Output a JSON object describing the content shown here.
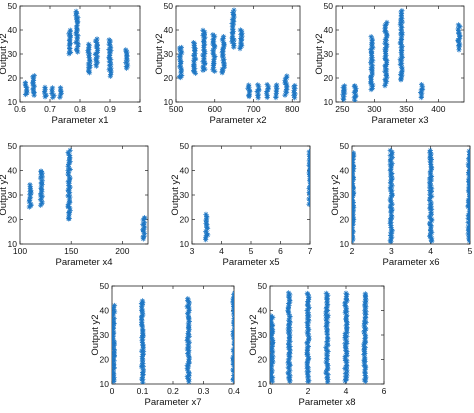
{
  "marker_color": "#1f77c4",
  "chart_data": [
    {
      "type": "scatter",
      "xlabel": "Parameter x1",
      "ylabel": "Output y2",
      "xlim": [
        0.6,
        1
      ],
      "ylim": [
        10,
        50
      ],
      "xticks": [
        "0.6",
        "0.7",
        "0.8",
        "0.9",
        "1"
      ],
      "yticks": [
        "10",
        "20",
        "30",
        "40",
        "50"
      ],
      "clusters": [
        {
          "x": 0.62,
          "y": [
            13,
            18
          ]
        },
        {
          "x": 0.645,
          "y": [
            13,
            21
          ]
        },
        {
          "x": 0.685,
          "y": [
            12,
            16
          ]
        },
        {
          "x": 0.71,
          "y": [
            12,
            16
          ]
        },
        {
          "x": 0.735,
          "y": [
            12,
            16
          ]
        },
        {
          "x": 0.765,
          "y": [
            30,
            40
          ]
        },
        {
          "x": 0.79,
          "y": [
            31,
            48
          ]
        },
        {
          "x": 0.83,
          "y": [
            22,
            34
          ]
        },
        {
          "x": 0.855,
          "y": [
            25,
            36
          ]
        },
        {
          "x": 0.9,
          "y": [
            21,
            36
          ]
        },
        {
          "x": 0.955,
          "y": [
            24,
            32
          ]
        }
      ]
    },
    {
      "type": "scatter",
      "xlabel": "Parameter x2",
      "ylabel": "Output y2",
      "xlim": [
        500,
        820
      ],
      "ylim": [
        10,
        50
      ],
      "xticks": [
        "500",
        "600",
        "700",
        "800"
      ],
      "yticks": [
        "10",
        "20",
        "30",
        "40",
        "50"
      ],
      "clusters": [
        {
          "x": 512,
          "y": [
            20,
            33
          ]
        },
        {
          "x": 548,
          "y": [
            22,
            35
          ]
        },
        {
          "x": 572,
          "y": [
            23,
            40
          ]
        },
        {
          "x": 598,
          "y": [
            23,
            38
          ]
        },
        {
          "x": 622,
          "y": [
            22,
            37
          ]
        },
        {
          "x": 647,
          "y": [
            33,
            48
          ]
        },
        {
          "x": 668,
          "y": [
            32,
            40
          ]
        },
        {
          "x": 688,
          "y": [
            12,
            17
          ]
        },
        {
          "x": 712,
          "y": [
            12,
            17
          ]
        },
        {
          "x": 736,
          "y": [
            12,
            17
          ]
        },
        {
          "x": 760,
          "y": [
            12,
            17
          ]
        },
        {
          "x": 784,
          "y": [
            13,
            21
          ]
        },
        {
          "x": 806,
          "y": [
            12,
            17
          ]
        }
      ]
    },
    {
      "type": "scatter",
      "xlabel": "Parameter x3",
      "ylabel": "Output y2",
      "xlim": [
        240,
        440
      ],
      "ylim": [
        10,
        50
      ],
      "xticks": [
        "250",
        "300",
        "350",
        "400"
      ],
      "yticks": [
        "10",
        "20",
        "30",
        "40",
        "50"
      ],
      "clusters": [
        {
          "x": 252,
          "y": [
            11,
            17
          ]
        },
        {
          "x": 270,
          "y": [
            11,
            17
          ]
        },
        {
          "x": 296,
          "y": [
            15,
            37
          ]
        },
        {
          "x": 318,
          "y": [
            17,
            43
          ]
        },
        {
          "x": 342,
          "y": [
            19,
            48
          ]
        },
        {
          "x": 374,
          "y": [
            12,
            17
          ]
        },
        {
          "x": 432,
          "y": [
            32,
            42
          ]
        }
      ]
    },
    {
      "type": "scatter",
      "xlabel": "Parameter x4",
      "ylabel": "Output y2",
      "xlim": [
        100,
        225
      ],
      "ylim": [
        10,
        50
      ],
      "xticks": [
        "100",
        "150",
        "200"
      ],
      "yticks": [
        "10",
        "20",
        "30",
        "40",
        "50"
      ],
      "clusters": [
        {
          "x": 110,
          "y": [
            25,
            34
          ]
        },
        {
          "x": 121,
          "y": [
            26,
            40
          ]
        },
        {
          "x": 148,
          "y": [
            20,
            48
          ]
        },
        {
          "x": 221,
          "y": [
            12,
            21
          ]
        }
      ]
    },
    {
      "type": "scatter",
      "xlabel": "Parameter x5",
      "ylabel": "Output y2",
      "xlim": [
        3,
        7
      ],
      "ylim": [
        10,
        50
      ],
      "xticks": [
        "3",
        "4",
        "5",
        "6",
        "7"
      ],
      "yticks": [
        "10",
        "20",
        "30",
        "40",
        "50"
      ],
      "clusters": [
        {
          "x": 3.5,
          "y": [
            12,
            22
          ]
        },
        {
          "x": 7,
          "y": [
            26,
            48
          ]
        }
      ]
    },
    {
      "type": "scatter",
      "xlabel": "Parameter x6",
      "ylabel": "Output y2",
      "xlim": [
        2,
        5
      ],
      "ylim": [
        10,
        50
      ],
      "xticks": [
        "2",
        "3",
        "4",
        "5"
      ],
      "yticks": [
        "10",
        "20",
        "30",
        "40",
        "50"
      ],
      "clusters": [
        {
          "x": 2.02,
          "y": [
            11,
            47
          ]
        },
        {
          "x": 3,
          "y": [
            11,
            48
          ]
        },
        {
          "x": 4,
          "y": [
            11,
            48
          ]
        },
        {
          "x": 4.98,
          "y": [
            11,
            48
          ]
        }
      ]
    },
    {
      "type": "scatter",
      "xlabel": "Parameter x7",
      "ylabel": "Output y2",
      "xlim": [
        0,
        0.4
      ],
      "ylim": [
        10,
        50
      ],
      "xticks": [
        "0",
        "0.1",
        "0.2",
        "0.3",
        "0.4"
      ],
      "yticks": [
        "10",
        "20",
        "30",
        "40",
        "50"
      ],
      "clusters": [
        {
          "x": 0.005,
          "y": [
            11,
            42
          ]
        },
        {
          "x": 0.1,
          "y": [
            11,
            44
          ]
        },
        {
          "x": 0.25,
          "y": [
            11,
            45
          ]
        },
        {
          "x": 0.4,
          "y": [
            11,
            47
          ]
        }
      ]
    },
    {
      "type": "scatter",
      "xlabel": "Parameter x8",
      "ylabel": "Output y2",
      "xlim": [
        0,
        6
      ],
      "ylim": [
        10,
        50
      ],
      "xticks": [
        "0",
        "2",
        "4",
        "6"
      ],
      "yticks": [
        "10",
        "20",
        "30",
        "40",
        "50"
      ],
      "clusters": [
        {
          "x": 0.1,
          "y": [
            11,
            38
          ]
        },
        {
          "x": 1,
          "y": [
            11,
            47
          ]
        },
        {
          "x": 2,
          "y": [
            11,
            47
          ]
        },
        {
          "x": 3,
          "y": [
            11,
            47
          ]
        },
        {
          "x": 4,
          "y": [
            11,
            47
          ]
        },
        {
          "x": 5,
          "y": [
            11,
            47
          ]
        }
      ]
    }
  ]
}
